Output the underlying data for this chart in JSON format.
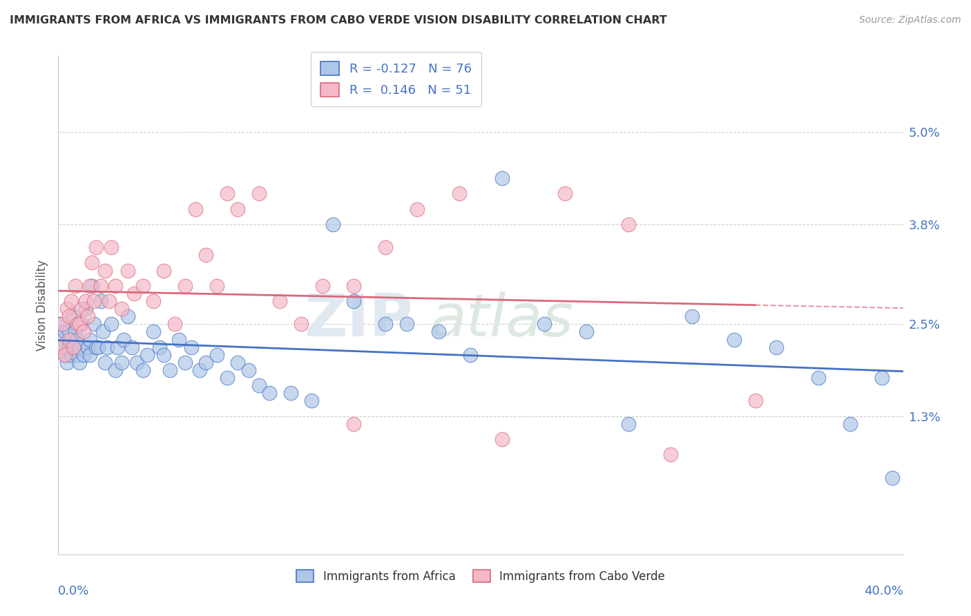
{
  "title": "IMMIGRANTS FROM AFRICA VS IMMIGRANTS FROM CABO VERDE VISION DISABILITY CORRELATION CHART",
  "source": "Source: ZipAtlas.com",
  "ylabel": "Vision Disability",
  "right_yticks": [
    0.013,
    0.025,
    0.038,
    0.05
  ],
  "right_yticklabels": [
    "1.3%",
    "2.5%",
    "3.8%",
    "5.0%"
  ],
  "xlim": [
    0.0,
    0.4
  ],
  "ylim": [
    -0.005,
    0.06
  ],
  "legend_r1": "R = -0.127",
  "legend_n1": "N = 76",
  "legend_r2": "R =  0.146",
  "legend_n2": "N = 51",
  "color_africa": "#aec6e8",
  "color_cabo": "#f4b8c8",
  "color_line_africa": "#4472c4",
  "color_line_cabo": "#d9687a",
  "watermark_zip": "ZIP",
  "watermark_atlas": "atlas",
  "africa_x": [
    0.001,
    0.002,
    0.002,
    0.003,
    0.003,
    0.004,
    0.005,
    0.005,
    0.006,
    0.006,
    0.007,
    0.007,
    0.008,
    0.008,
    0.009,
    0.009,
    0.01,
    0.01,
    0.011,
    0.012,
    0.013,
    0.014,
    0.015,
    0.015,
    0.016,
    0.017,
    0.018,
    0.019,
    0.02,
    0.021,
    0.022,
    0.023,
    0.025,
    0.027,
    0.028,
    0.03,
    0.031,
    0.033,
    0.035,
    0.037,
    0.04,
    0.042,
    0.045,
    0.048,
    0.05,
    0.053,
    0.057,
    0.06,
    0.063,
    0.067,
    0.07,
    0.075,
    0.08,
    0.085,
    0.09,
    0.095,
    0.1,
    0.11,
    0.12,
    0.13,
    0.14,
    0.155,
    0.165,
    0.18,
    0.195,
    0.21,
    0.23,
    0.25,
    0.27,
    0.3,
    0.32,
    0.34,
    0.36,
    0.375,
    0.39,
    0.395
  ],
  "africa_y": [
    0.025,
    0.023,
    0.022,
    0.021,
    0.024,
    0.02,
    0.024,
    0.022,
    0.023,
    0.021,
    0.026,
    0.022,
    0.022,
    0.024,
    0.021,
    0.023,
    0.022,
    0.02,
    0.025,
    0.021,
    0.027,
    0.022,
    0.021,
    0.023,
    0.03,
    0.025,
    0.022,
    0.022,
    0.028,
    0.024,
    0.02,
    0.022,
    0.025,
    0.019,
    0.022,
    0.02,
    0.023,
    0.026,
    0.022,
    0.02,
    0.019,
    0.021,
    0.024,
    0.022,
    0.021,
    0.019,
    0.023,
    0.02,
    0.022,
    0.019,
    0.02,
    0.021,
    0.018,
    0.02,
    0.019,
    0.017,
    0.016,
    0.016,
    0.015,
    0.038,
    0.028,
    0.025,
    0.025,
    0.024,
    0.021,
    0.044,
    0.025,
    0.024,
    0.012,
    0.026,
    0.023,
    0.022,
    0.018,
    0.012,
    0.018,
    0.005
  ],
  "cabo_x": [
    0.001,
    0.002,
    0.003,
    0.004,
    0.005,
    0.005,
    0.006,
    0.007,
    0.008,
    0.009,
    0.01,
    0.011,
    0.012,
    0.013,
    0.014,
    0.015,
    0.016,
    0.017,
    0.018,
    0.02,
    0.022,
    0.024,
    0.025,
    0.027,
    0.03,
    0.033,
    0.036,
    0.04,
    0.045,
    0.05,
    0.055,
    0.06,
    0.065,
    0.07,
    0.075,
    0.08,
    0.085,
    0.095,
    0.105,
    0.115,
    0.125,
    0.14,
    0.155,
    0.17,
    0.19,
    0.21,
    0.24,
    0.27,
    0.14,
    0.29,
    0.33
  ],
  "cabo_y": [
    0.022,
    0.025,
    0.021,
    0.027,
    0.023,
    0.026,
    0.028,
    0.022,
    0.03,
    0.025,
    0.025,
    0.027,
    0.024,
    0.028,
    0.026,
    0.03,
    0.033,
    0.028,
    0.035,
    0.03,
    0.032,
    0.028,
    0.035,
    0.03,
    0.027,
    0.032,
    0.029,
    0.03,
    0.028,
    0.032,
    0.025,
    0.03,
    0.04,
    0.034,
    0.03,
    0.042,
    0.04,
    0.042,
    0.028,
    0.025,
    0.03,
    0.03,
    0.035,
    0.04,
    0.042,
    0.01,
    0.042,
    0.038,
    0.012,
    0.008,
    0.015
  ]
}
